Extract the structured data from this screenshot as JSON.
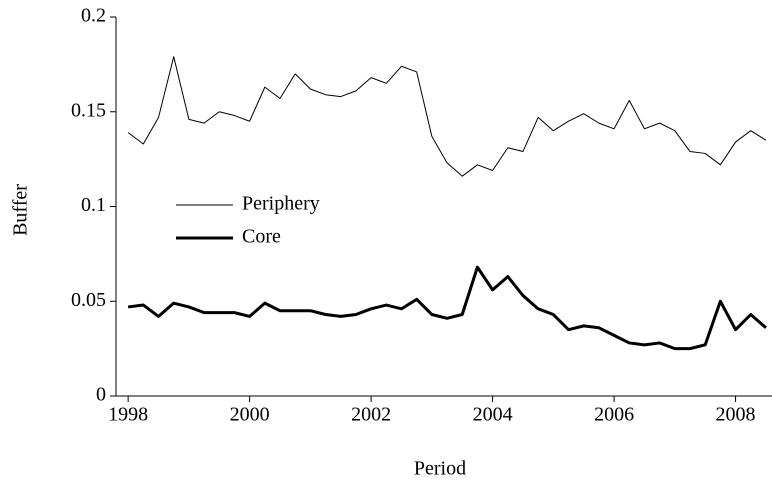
{
  "chart_data": {
    "type": "line",
    "x_label": "Period",
    "y_label": "Buffer",
    "x": [
      1998,
      1998.25,
      1998.5,
      1998.75,
      1999,
      1999.25,
      1999.5,
      1999.75,
      2000,
      2000.25,
      2000.5,
      2000.75,
      2001,
      2001.25,
      2001.5,
      2001.75,
      2002,
      2002.25,
      2002.5,
      2002.75,
      2003,
      2003.25,
      2003.5,
      2003.75,
      2004,
      2004.25,
      2004.5,
      2004.75,
      2005,
      2005.25,
      2005.5,
      2005.75,
      2006,
      2006.25,
      2006.5,
      2006.75,
      2007,
      2007.25,
      2007.5,
      2007.75,
      2008,
      2008.25,
      2008.5
    ],
    "series": [
      {
        "name": "Periphery",
        "color": "#000000",
        "width": 1,
        "values": [
          0.139,
          0.133,
          0.147,
          0.179,
          0.146,
          0.144,
          0.15,
          0.148,
          0.145,
          0.163,
          0.157,
          0.17,
          0.162,
          0.159,
          0.158,
          0.161,
          0.168,
          0.165,
          0.174,
          0.171,
          0.137,
          0.123,
          0.116,
          0.122,
          0.119,
          0.131,
          0.129,
          0.147,
          0.14,
          0.145,
          0.149,
          0.144,
          0.141,
          0.156,
          0.141,
          0.144,
          0.14,
          0.129,
          0.128,
          0.122,
          0.134,
          0.14,
          0.135
        ]
      },
      {
        "name": "Core",
        "color": "#000000",
        "width": 3,
        "values": [
          0.047,
          0.048,
          0.042,
          0.049,
          0.047,
          0.044,
          0.044,
          0.044,
          0.042,
          0.049,
          0.045,
          0.045,
          0.045,
          0.043,
          0.042,
          0.043,
          0.046,
          0.048,
          0.046,
          0.051,
          0.043,
          0.041,
          0.043,
          0.068,
          0.056,
          0.063,
          0.053,
          0.046,
          0.043,
          0.035,
          0.037,
          0.036,
          0.032,
          0.028,
          0.027,
          0.028,
          0.025,
          0.025,
          0.027,
          0.05,
          0.035,
          0.043,
          0.036
        ]
      }
    ],
    "xlim": [
      1997.8,
      2008.6
    ],
    "xticks": [
      1998,
      2000,
      2002,
      2004,
      2006,
      2008
    ],
    "ylim": [
      0,
      0.2
    ],
    "yticks": [
      0,
      0.05,
      0.1,
      0.15,
      0.2
    ],
    "grid": false
  }
}
